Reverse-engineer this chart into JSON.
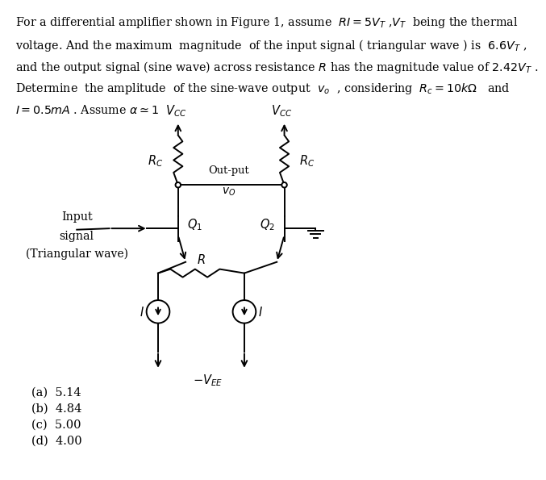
{
  "bg_color": "#ffffff",
  "line_color": "#000000",
  "text_lines": [
    "For a differential amplifier shown in Figure 1, assume  $RI = 5V_T$ ,$V_T$  being the thermal",
    "voltage. And the maximum  magnitude  of the input signal ( triangular wave ) is  $6.6V_T$ ,",
    "and the output signal (sine wave) across resistance $R$ has the magnitude value of $2.42V_T$ .",
    "Determine  the amplitude  of the sine-wave output  $v_o$  , considering  $R_c = 10k\\Omega$   and",
    "$I = 0.5mA$ . Assume $\\alpha \\simeq 1$"
  ],
  "options": [
    "(a)  5.14",
    "(b)  4.84",
    "(c)  5.00",
    "(d)  4.00"
  ],
  "xL": 2.72,
  "xR": 4.42,
  "yVcc": 5.42,
  "yRcBot": 4.62,
  "yBase": 3.92,
  "yEmitL": 3.38,
  "yEmitR": 3.38,
  "yR": 3.2,
  "yCSL": 2.58,
  "yCSR": 2.58,
  "yBot": 1.92,
  "xCSL": 2.35,
  "xCSR": 3.92,
  "lw": 1.4,
  "font_size": 10.3
}
